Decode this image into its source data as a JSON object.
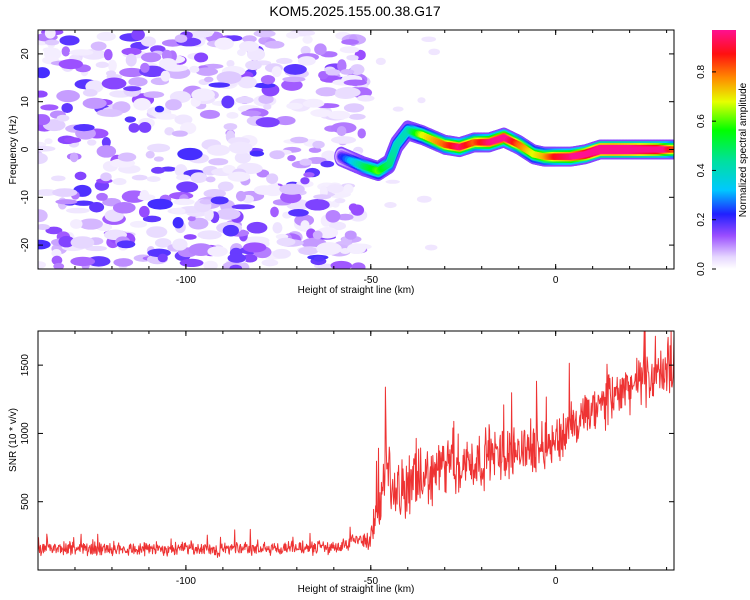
{
  "title": "KOM5.2025.155.00.38.G17",
  "colors": {
    "snr_line": "#ee3333",
    "frame": "#000000",
    "background": "#ffffff"
  },
  "chart_data": [
    {
      "type": "heatmap",
      "xlabel": "Height of straight line (km)",
      "ylabel": "Frequency (Hz)",
      "xlim": [
        -140,
        32
      ],
      "ylim": [
        -25,
        25
      ],
      "xticks": [
        -100,
        -50,
        0
      ],
      "xtick_labels": [
        "-100",
        "-50",
        "0"
      ],
      "yticks": [
        -20,
        -10,
        0,
        10,
        20
      ],
      "ytick_labels": [
        "-20",
        "-10",
        "0",
        "10",
        "20"
      ],
      "colorbar": {
        "label": "Normalized spectral amplitude",
        "range": [
          0,
          0.97
        ],
        "ticks": [
          0,
          0.2,
          0.4,
          0.6,
          0.8
        ],
        "tick_labels": [
          "0.0",
          "0.2",
          "0.4",
          "0.6",
          "0.8"
        ],
        "colormap": "hsv-like: white/lavender at 0, violet, blue, cyan, green, yellow, orange, red, magenta at max"
      },
      "features": {
        "noise_region_x": [
          -140,
          -52
        ],
        "noise_amplitude_range": [
          0.02,
          0.2
        ],
        "signal_trace": {
          "x": [
            -58,
            -52,
            -48,
            -45,
            -43,
            -40,
            -36,
            -30,
            -26,
            -22,
            -18,
            -14,
            -10,
            -6,
            -3,
            0,
            4,
            8,
            12,
            16,
            20,
            24,
            28,
            32
          ],
          "frequency": [
            -1.5,
            -3.5,
            -4.5,
            -3,
            1,
            4,
            3,
            1,
            0.5,
            1.5,
            1.5,
            2.5,
            1,
            -1,
            -1.5,
            -1.5,
            -1.5,
            -1,
            0,
            0,
            0,
            0,
            0,
            0
          ],
          "peak_amplitude": [
            0.15,
            0.35,
            0.45,
            0.35,
            0.3,
            0.3,
            0.5,
            0.6,
            0.7,
            0.6,
            0.7,
            0.75,
            0.6,
            0.5,
            0.55,
            0.65,
            0.7,
            0.8,
            0.9,
            0.92,
            0.9,
            0.85,
            0.8,
            0.6
          ]
        }
      }
    },
    {
      "type": "line",
      "xlabel": "Height of straight line (km)",
      "ylabel": "SNR (10 * v/v)",
      "xlim": [
        -140,
        32
      ],
      "ylim": [
        0,
        1750
      ],
      "xticks": [
        -100,
        -50,
        0
      ],
      "xtick_labels": [
        "-100",
        "-50",
        "0"
      ],
      "yticks": [
        500,
        1000,
        1500
      ],
      "ytick_labels": [
        "500",
        "1000",
        "1500"
      ],
      "series": [
        {
          "x": [
            -140,
            -130,
            -120,
            -110,
            -100,
            -90,
            -80,
            -70,
            -60,
            -55,
            -50,
            -48,
            -46,
            -45,
            -44,
            -40,
            -35,
            -30,
            -25,
            -20,
            -15,
            -10,
            -5,
            0,
            5,
            10,
            15,
            20,
            25,
            30,
            32
          ],
          "values": [
            150,
            150,
            160,
            155,
            150,
            150,
            155,
            160,
            165,
            200,
            240,
            450,
            650,
            750,
            550,
            600,
            680,
            750,
            780,
            800,
            850,
            880,
            900,
            950,
            1050,
            1150,
            1250,
            1350,
            1400,
            1450,
            1430
          ],
          "noise_spread": [
            60,
            60,
            60,
            60,
            60,
            60,
            60,
            60,
            60,
            80,
            120,
            200,
            280,
            300,
            260,
            260,
            260,
            260,
            260,
            250,
            240,
            230,
            220,
            220,
            220,
            220,
            220,
            220,
            220,
            220,
            220
          ]
        }
      ]
    }
  ]
}
